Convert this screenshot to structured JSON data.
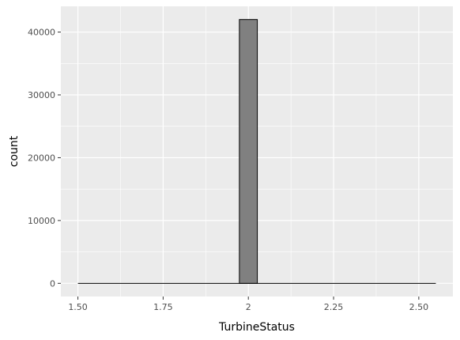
{
  "chart_data": {
    "type": "bar",
    "title": "",
    "xlabel": "TurbineStatus",
    "ylabel": "count",
    "x_ticks": [
      1.5,
      1.75,
      2,
      2.25,
      2.5
    ],
    "x_tick_labels": [
      "1.50",
      "1.75",
      "2",
      "2.25",
      "2.50"
    ],
    "y_ticks": [
      0,
      10000,
      20000,
      30000,
      40000
    ],
    "y_tick_labels": [
      "0",
      "10000",
      "20000",
      "30000",
      "40000"
    ],
    "xlim": [
      1.45,
      2.6
    ],
    "ylim": [
      -2100,
      44100
    ],
    "binwidth": 0.05263,
    "bin_range": [
      1.5,
      2.55
    ],
    "bins": [
      {
        "x_start": 1.9737,
        "x_end": 2.0263,
        "count": 42000
      }
    ],
    "grid": true,
    "colors": {
      "panel_background": "#ebebeb",
      "grid": "#ffffff",
      "bar_fill": "#808080",
      "bar_outline": "#000000"
    }
  }
}
